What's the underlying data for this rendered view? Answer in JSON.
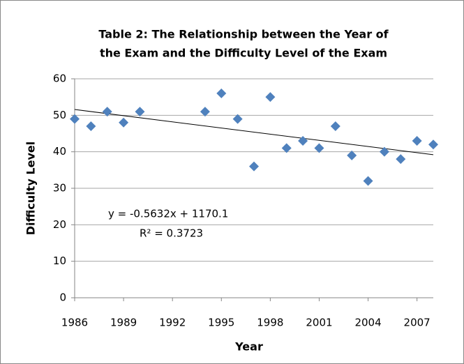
{
  "chart_data": {
    "type": "scatter",
    "title": [
      "Table 2: The Relationship between the Year of",
      "the Exam and the Difficulty Level of the Exam"
    ],
    "x_label": "Year",
    "y_label": "Difficulty Level",
    "series": [
      {
        "color": "#4f81bd",
        "x": [
          1986,
          1987,
          1988,
          1989,
          1990,
          1994,
          1995,
          1996,
          1997,
          1998,
          1999,
          2000,
          2001,
          2002,
          2003,
          2004,
          2005,
          2006,
          2007,
          2008
        ],
        "values": [
          49,
          47,
          51,
          48,
          51,
          51,
          56,
          49,
          36,
          55,
          41,
          43,
          41,
          47,
          39,
          32,
          40,
          38,
          43,
          42
        ]
      }
    ],
    "trendline": {
      "slope": -0.5632,
      "intercept": 1170.1,
      "label": "y = -0.5632x + 1170.1",
      "r_squared_label": "R² = 0.3723",
      "color": "#000000"
    },
    "xlim": [
      1986,
      2008
    ],
    "xticks": [
      1986,
      1989,
      1992,
      1995,
      1998,
      2001,
      2004,
      2007
    ],
    "ylim": [
      0,
      60
    ],
    "yticks": [
      0,
      10,
      20,
      30,
      40,
      50,
      60
    ],
    "grid": true
  }
}
